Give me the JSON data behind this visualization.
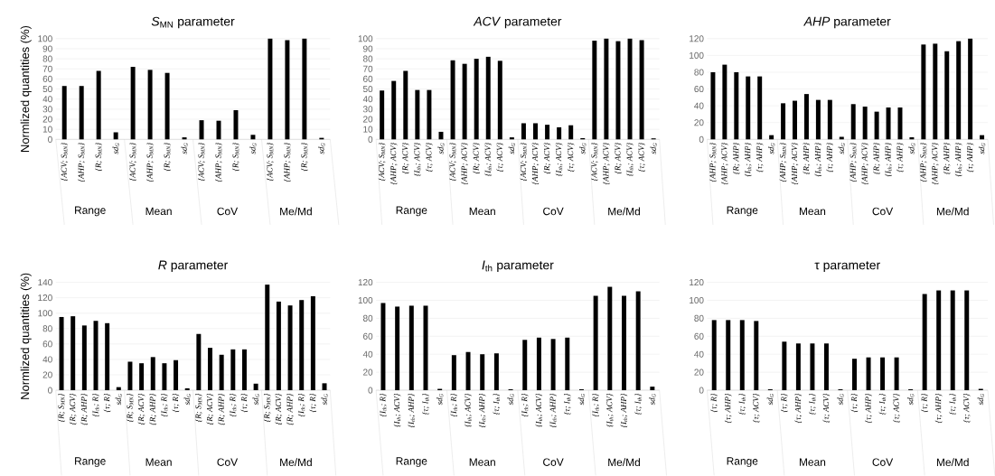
{
  "chart_data": [
    {
      "type": "bar",
      "title": "*S*$_{MN}$ parameter",
      "ylabel": "Normlized quantities (%)",
      "color": "#000000",
      "grid": "y",
      "ylim": [
        0,
        100
      ],
      "yticks": [
        0,
        10,
        20,
        30,
        40,
        50,
        60,
        70,
        80,
        90,
        100
      ],
      "categories": [
        "{ACV; S$_{MN}$}",
        "{AHP; S$_{MN}$}",
        "{R; S$_{MN}$}",
        "sd$_{G}$",
        "{ACV; S$_{MN}$}",
        "{AHP; S$_{MN}$}",
        "{R; S$_{MN}$}",
        "sd$_{G}$",
        "{ACV; S$_{MN}$}",
        "{AHP; S$_{MN}$}",
        "{R; S$_{MN}$}",
        "sd$_{G}$",
        "{ACV; S$_{MN}$}",
        "{AHP; S$_{MN}$}",
        "{R; S$_{MN}$}",
        "sd$_{G}$"
      ],
      "values": [
        53,
        53,
        68,
        7,
        72,
        69,
        66,
        2,
        19,
        18.5,
        29,
        4.5,
        100,
        98.5,
        100,
        1.5
      ],
      "annotations": [
        "Range",
        "Mean",
        "CoV",
        "Me/Md"
      ]
    },
    {
      "type": "bar",
      "title": "*ACV* parameter",
      "color": "#000000",
      "grid": "y",
      "ylim": [
        0,
        100
      ],
      "yticks": [
        0,
        10,
        20,
        30,
        40,
        50,
        60,
        70,
        80,
        90,
        100
      ],
      "categories": [
        "{ACV; S$_{MN}$}",
        "{AHP; ACV}",
        "{R; ACV}",
        "{I$_{th}$; ACV}",
        "{τ; ACV}",
        "sd$_{G}$",
        "{ACV; S$_{MN}$}",
        "{AHP; ACV}",
        "{R; ACV}",
        "{I$_{th}$; ACV}",
        "{τ; ACV}",
        "sd$_{G}$",
        "{ACV; S$_{MN}$}",
        "{AHP; ACV}",
        "{R; ACV}",
        "{I$_{th}$; ACV}",
        "{τ; ACV}",
        "sd$_{G}$",
        "{ACV; S$_{MN}$}",
        "{AHP; ACV}",
        "{R; ACV}",
        "{I$_{th}$; ACV}",
        "{τ; ACV}",
        "sd$_{G}$"
      ],
      "values": [
        48.5,
        58,
        68,
        49,
        49,
        7.5,
        78.5,
        75,
        80,
        82,
        78,
        2,
        16,
        16,
        14.5,
        12,
        14,
        1.2,
        98,
        100,
        97.5,
        100,
        98.5,
        1
      ],
      "annotations": [
        "Range",
        "Mean",
        "CoV",
        "Me/Md"
      ]
    },
    {
      "type": "bar",
      "title": "*AHP* parameter",
      "color": "#000000",
      "grid": "y",
      "ylim": [
        0,
        120
      ],
      "yticks": [
        0,
        20,
        40,
        60,
        80,
        100,
        120
      ],
      "categories": [
        "{AHP; S$_{MN}$}",
        "{AHP; ACV}",
        "{R; AHP}",
        "{I$_{th}$; AHP}",
        "{τ; AHP}",
        "sd$_{G}$",
        "{AHP; S$_{MN}$}",
        "{AHP; ACV}",
        "{R; AHP}",
        "{I$_{th}$; AHP}",
        "{τ; AHP}",
        "sd$_{G}$",
        "{AHP; S$_{MN}$}",
        "{AHP; ACV}",
        "{R; AHP}",
        "{I$_{th}$; AHP}",
        "{τ; AHP}",
        "sd$_{G}$",
        "{AHP; S$_{MN}$}",
        "{AHP; ACV}",
        "{R; AHP}",
        "{I$_{th}$; AHP}",
        "{τ; AHP}",
        "sd$_{G}$"
      ],
      "values": [
        80,
        89,
        80,
        75,
        75,
        5,
        43,
        46,
        54,
        47,
        47,
        3,
        42,
        39,
        33,
        38,
        38,
        2.5,
        113,
        114,
        105,
        117,
        120,
        5
      ],
      "annotations": [
        "Range",
        "Mean",
        "CoV",
        "Me/Md"
      ]
    },
    {
      "type": "bar",
      "title": "*R* parameter",
      "ylabel": "Normlized quantities (%)",
      "color": "#000000",
      "grid": "y",
      "ylim": [
        0,
        140
      ],
      "yticks": [
        0,
        20,
        40,
        60,
        80,
        100,
        120,
        140
      ],
      "categories": [
        "{R; S$_{MN}$}",
        "{R; ACV}",
        "{R; AHP}",
        "{I$_{th}$; R}",
        "{τ; R}",
        "sd$_{G}$",
        "{R; S$_{MN}$}",
        "{R; ACV}",
        "{R; AHP}",
        "{I$_{th}$; R}",
        "{τ; R}",
        "sd$_{G}$",
        "{R; S$_{MN}$}",
        "{R; ACV}",
        "{R; AHP}",
        "{I$_{th}$; R}",
        "{τ; R}",
        "sd$_{G}$",
        "{R; S$_{MN}$}",
        "{R; ACV}",
        "{R; AHP}",
        "{I$_{th}$; R}",
        "{τ; R}",
        "sd$_{G}$"
      ],
      "values": [
        95,
        96,
        84,
        90,
        87,
        4,
        37,
        35,
        43,
        35,
        39,
        2.5,
        73,
        55,
        46,
        53,
        53,
        8.5,
        137,
        115,
        110,
        117,
        122,
        9
      ],
      "annotations": [
        "Range",
        "Mean",
        "CoV",
        "Me/Md"
      ]
    },
    {
      "type": "bar",
      "title": "*I*$_{th}$ parameter",
      "color": "#000000",
      "grid": "y",
      "ylim": [
        0,
        120
      ],
      "yticks": [
        0,
        20,
        40,
        60,
        80,
        100,
        120
      ],
      "categories": [
        "{I$_{th}$; R}",
        "{I$_{th}$; ACV}",
        "{I$_{th}$; AHP}",
        "{τ; I$_{th}$}",
        "sd$_{G}$",
        "{I$_{th}$; R}",
        "{I$_{th}$; ACV}",
        "{I$_{th}$; AHP}",
        "{τ; I$_{th}$}",
        "sd$_{G}$",
        "{I$_{th}$; R}",
        "{I$_{th}$; ACV}",
        "{I$_{th}$; AHP}",
        "{τ; I$_{th}$}",
        "sd$_{G}$",
        "{I$_{th}$; R}",
        "{I$_{th}$; ACV}",
        "{I$_{th}$; AHP}",
        "{τ; I$_{th}$}",
        "sd$_{G}$"
      ],
      "values": [
        97,
        93,
        94,
        94,
        1.5,
        39,
        42.5,
        40,
        41,
        1,
        56,
        58.5,
        57,
        58.5,
        1,
        105,
        115,
        105,
        110,
        4
      ],
      "annotations": [
        "Range",
        "Mean",
        "CoV",
        "Me/Md"
      ]
    },
    {
      "type": "bar",
      "title": "τ parameter",
      "color": "#000000",
      "grid": "y",
      "ylim": [
        0,
        120
      ],
      "yticks": [
        0,
        20,
        40,
        60,
        80,
        100,
        120
      ],
      "categories": [
        "{τ; R}",
        "{τ; AHP}",
        "{τ; I$_{th}$}",
        "{τ; ACV}",
        "sd$_{G}$",
        "{τ; R}",
        "{τ; AHP}",
        "{τ; I$_{th}$}",
        "{τ; ACV}",
        "sd$_{G}$",
        "{τ; R}",
        "{τ; AHP}",
        "{τ; I$_{th}$}",
        "{τ; ACV}",
        "sd$_{G}$",
        "{τ; R}",
        "{τ; AHP}",
        "{τ; I$_{th}$}",
        "{τ; ACV}",
        "sd$_{G}$"
      ],
      "values": [
        78,
        78,
        78,
        77,
        1,
        54,
        52,
        52,
        52,
        1,
        35,
        36.5,
        36.5,
        36.5,
        1,
        107,
        111,
        111,
        111,
        1.5
      ],
      "annotations": [
        "Range",
        "Mean",
        "CoV",
        "Me/Md"
      ]
    }
  ]
}
